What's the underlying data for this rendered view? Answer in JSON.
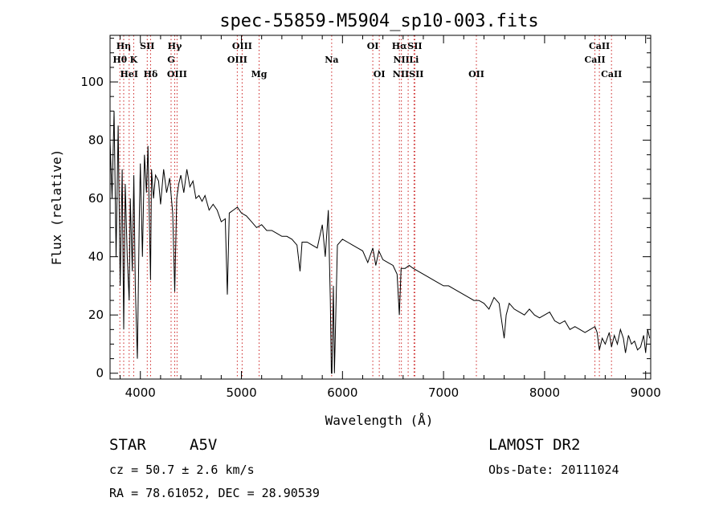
{
  "chart_data": {
    "type": "line",
    "title": "spec-55859-M5904_sp10-003.fits",
    "xlabel": "Wavelength (Å)",
    "ylabel": "Flux (relative)",
    "xlim": [
      3700,
      9050
    ],
    "ylim": [
      -2,
      116
    ],
    "xticks": [
      4000,
      5000,
      6000,
      7000,
      8000,
      9000
    ],
    "yticks": [
      0,
      20,
      40,
      60,
      80,
      100
    ],
    "grid": false,
    "series": [
      {
        "x": [
          3700,
          3720,
          3740,
          3760,
          3780,
          3800,
          3820,
          3835,
          3850,
          3870,
          3889,
          3900,
          3920,
          3935,
          3950,
          3970,
          3990,
          4000,
          4020,
          4040,
          4060,
          4075,
          4090,
          4101,
          4110,
          4130,
          4150,
          4180,
          4200,
          4230,
          4260,
          4290,
          4320,
          4340,
          4360,
          4380,
          4400,
          4430,
          4460,
          4490,
          4520,
          4550,
          4580,
          4610,
          4640,
          4680,
          4720,
          4760,
          4800,
          4840,
          4861,
          4880,
          4920,
          4960,
          5000,
          5050,
          5100,
          5150,
          5200,
          5250,
          5300,
          5350,
          5400,
          5450,
          5500,
          5550,
          5580,
          5600,
          5650,
          5700,
          5750,
          5800,
          5830,
          5860,
          5880,
          5890,
          5896,
          5910,
          5920,
          5950,
          6000,
          6050,
          6100,
          6150,
          6200,
          6250,
          6300,
          6330,
          6360,
          6400,
          6450,
          6500,
          6540,
          6563,
          6580,
          6620,
          6660,
          6700,
          6750,
          6800,
          6850,
          6900,
          6950,
          7000,
          7050,
          7100,
          7150,
          7200,
          7250,
          7300,
          7350,
          7400,
          7450,
          7500,
          7550,
          7600,
          7620,
          7650,
          7700,
          7750,
          7800,
          7850,
          7900,
          7950,
          8000,
          8050,
          8100,
          8150,
          8200,
          8250,
          8300,
          8350,
          8400,
          8450,
          8498,
          8520,
          8542,
          8570,
          8600,
          8640,
          8662,
          8690,
          8720,
          8750,
          8780,
          8800,
          8830,
          8860,
          8890,
          8920,
          8950,
          8980,
          9000,
          9020,
          9040
        ],
        "values": [
          80,
          60,
          90,
          40,
          85,
          30,
          70,
          15,
          65,
          40,
          25,
          60,
          35,
          68,
          30,
          5,
          55,
          72,
          40,
          75,
          62,
          78,
          50,
          32,
          70,
          60,
          68,
          66,
          58,
          70,
          62,
          67,
          55,
          28,
          60,
          65,
          68,
          62,
          70,
          64,
          66,
          60,
          61,
          59,
          61,
          56,
          58,
          56,
          52,
          53,
          27,
          55,
          56,
          57,
          55,
          54,
          52,
          50,
          51,
          49,
          49,
          48,
          47,
          47,
          46,
          44,
          35,
          45,
          45,
          44,
          43,
          51,
          40,
          56,
          25,
          0,
          0,
          30,
          0,
          44,
          46,
          45,
          44,
          43,
          42,
          38,
          43,
          37,
          42,
          39,
          38,
          37,
          34,
          20,
          36,
          36,
          37,
          36,
          35,
          34,
          33,
          32,
          31,
          30,
          30,
          29,
          28,
          27,
          26,
          25,
          25,
          24,
          22,
          26,
          24,
          12,
          20,
          24,
          22,
          21,
          20,
          22,
          20,
          19,
          20,
          21,
          18,
          17,
          18,
          15,
          16,
          15,
          14,
          15,
          16,
          14,
          8,
          12,
          10,
          14,
          9,
          13,
          10,
          15,
          12,
          7,
          13,
          10,
          11,
          8,
          9,
          13,
          7,
          15,
          12
        ]
      }
    ],
    "line_markers": [
      {
        "label": "Hη",
        "x": 3835,
        "row": 0
      },
      {
        "label": "Hθ",
        "x": 3797,
        "row": 1
      },
      {
        "label": "HeI",
        "x": 3889,
        "row": 2
      },
      {
        "label": "K",
        "x": 3934,
        "row": 1
      },
      {
        "label": "SII",
        "x": 4068,
        "row": 0
      },
      {
        "label": "Hδ",
        "x": 4101,
        "row": 2
      },
      {
        "label": "Hγ",
        "x": 4340,
        "row": 0
      },
      {
        "label": "G",
        "x": 4304,
        "row": 1
      },
      {
        "label": "OIII",
        "x": 4363,
        "row": 2
      },
      {
        "label": "OIII",
        "x": 5007,
        "row": 0
      },
      {
        "label": "OIII",
        "x": 4959,
        "row": 1
      },
      {
        "label": "Mg",
        "x": 5175,
        "row": 2
      },
      {
        "label": "Na",
        "x": 5893,
        "row": 1
      },
      {
        "label": "OI",
        "x": 6300,
        "row": 0
      },
      {
        "label": "OI",
        "x": 6364,
        "row": 2
      },
      {
        "label": "Hα",
        "x": 6563,
        "row": 0
      },
      {
        "label": "SII",
        "x": 6716,
        "row": 0
      },
      {
        "label": "NII",
        "x": 6583,
        "row": 1
      },
      {
        "label": "Li",
        "x": 6708,
        "row": 1
      },
      {
        "label": "NIISII",
        "x": 6650,
        "row": 2
      },
      {
        "label": "OII",
        "x": 7325,
        "row": 2
      },
      {
        "label": "CaII",
        "x": 8542,
        "row": 0
      },
      {
        "label": "CaII",
        "x": 8498,
        "row": 1
      },
      {
        "label": "CaII",
        "x": 8662,
        "row": 2
      }
    ]
  },
  "info": {
    "class_label": "STAR",
    "subclass": "A5V",
    "survey": "LAMOST DR2",
    "cz": "cz = 50.7 ± 2.6 km/s",
    "obs_date": "Obs-Date: 20111024",
    "radec": "RA =  78.61052, DEC =  28.90539"
  }
}
